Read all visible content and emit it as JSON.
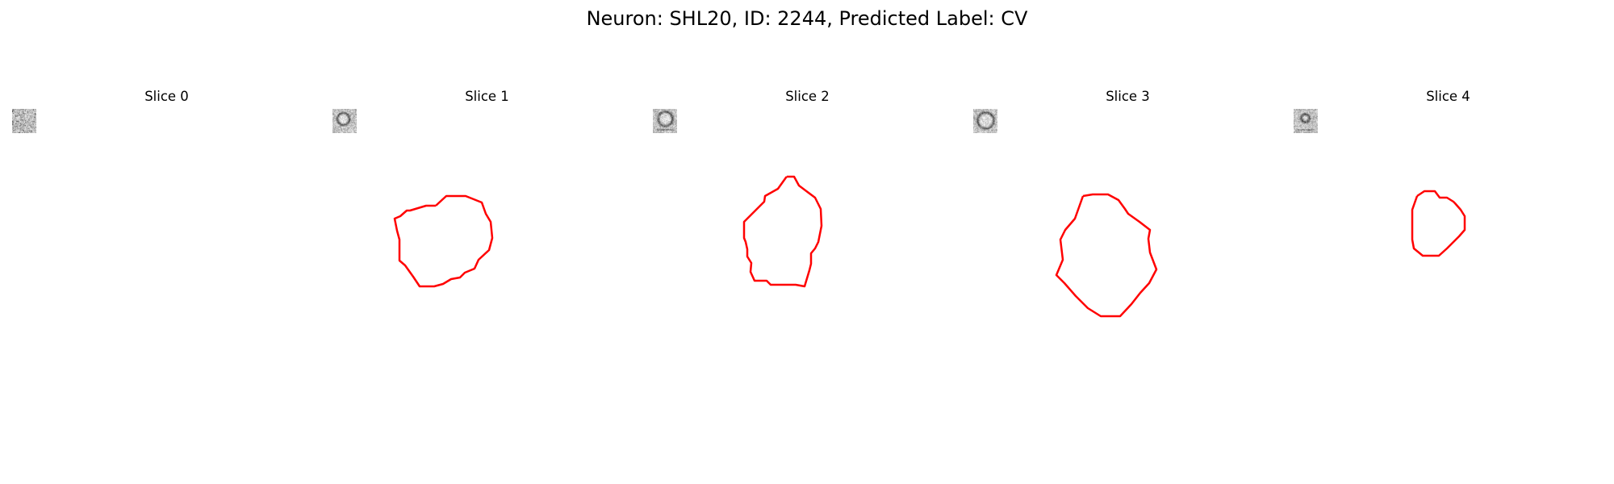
{
  "figure": {
    "title": "Neuron: SHL20, ID: 2244, Predicted Label: CV",
    "overlay_color": "#ff0000"
  },
  "panels": [
    {
      "title": "Slice 0",
      "has_contour": false
    },
    {
      "title": "Slice 1",
      "has_contour": true
    },
    {
      "title": "Slice 2",
      "has_contour": true
    },
    {
      "title": "Slice 3",
      "has_contour": true
    },
    {
      "title": "Slice 4",
      "has_contour": true
    }
  ]
}
